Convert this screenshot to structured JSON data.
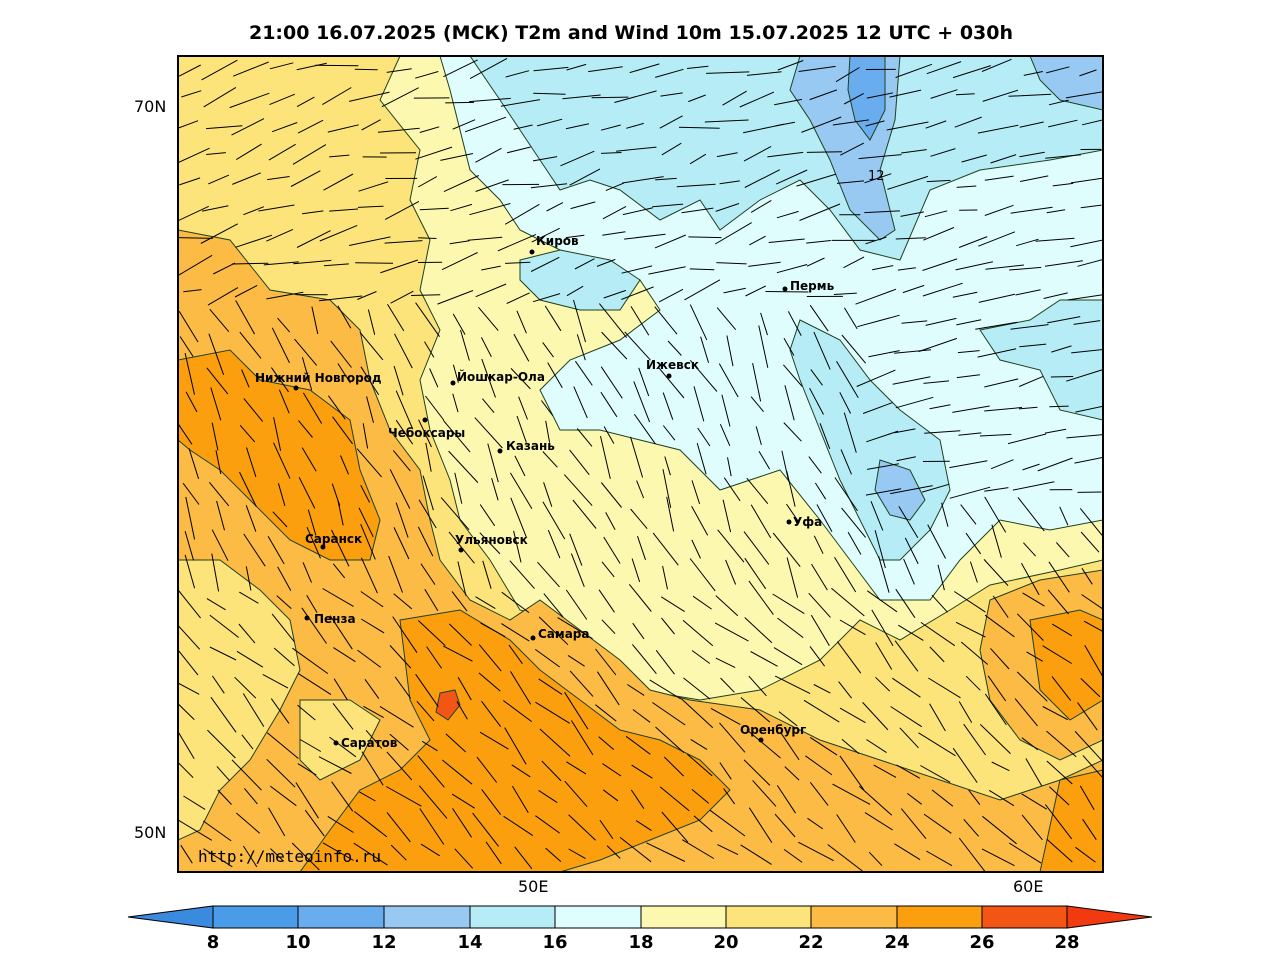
{
  "title": "21:00 16.07.2025 (МСК) T2m and Wind 10m 15.07.2025 12 UTC + 030h",
  "axes": {
    "lat_labels": [
      "70N",
      "50N"
    ],
    "lon_labels": [
      "50E",
      "60E"
    ]
  },
  "contour_label": "12",
  "watermark": "http://meteoinfo.ru",
  "cities": [
    {
      "name": "Киров"
    },
    {
      "name": "Пермь"
    },
    {
      "name": "Нижний Новгород"
    },
    {
      "name": "Йошкар-Ола"
    },
    {
      "name": "Ижевск"
    },
    {
      "name": "Чебоксары"
    },
    {
      "name": "Казань"
    },
    {
      "name": "Саранск"
    },
    {
      "name": "Ульяновск"
    },
    {
      "name": "Уфа"
    },
    {
      "name": "Пенза"
    },
    {
      "name": "Самара"
    },
    {
      "name": "Оренбург"
    },
    {
      "name": "Саратов"
    }
  ],
  "colorbar": {
    "labels": [
      "8",
      "10",
      "12",
      "14",
      "16",
      "18",
      "20",
      "22",
      "24",
      "26",
      "28"
    ],
    "colors": [
      "#4a9be8",
      "#6aadee",
      "#97c9f3",
      "#b5ecf5",
      "#e0fdfd",
      "#fdf8b0",
      "#fde47a",
      "#fcbb45",
      "#fb9f0e",
      "#f25514",
      "#f23a10"
    ]
  },
  "palette": {
    "t10": "#6aadee",
    "t12": "#97c9f3",
    "t14": "#b5ecf5",
    "t16": "#e0fdfd",
    "t18": "#fdf8b0",
    "t20": "#fde47a",
    "t22": "#fcbb45",
    "t24": "#fb9f0e",
    "t26": "#f25514"
  }
}
